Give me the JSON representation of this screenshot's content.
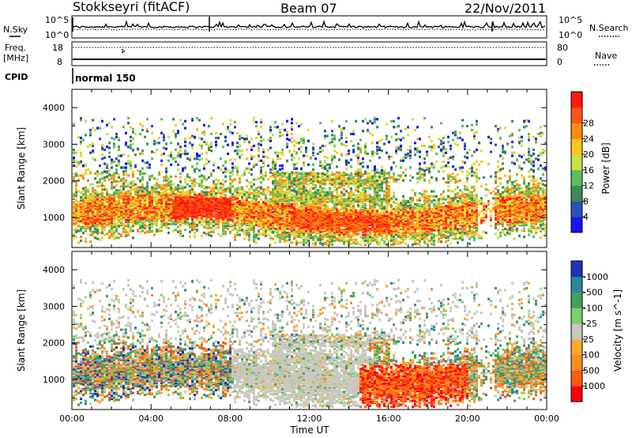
{
  "header": {
    "station": "Stokkseyri (fitACF)",
    "beam": "Beam 07",
    "date": "22/Nov/2011"
  },
  "noise_panel": {
    "left_label": "N.Sky",
    "right_label": "N.Search",
    "tick_top": "10^5",
    "tick_bottom": "10^0"
  },
  "freq_panel": {
    "left_label_1": "Freq.",
    "left_label_2": "[MHz]",
    "right_label": "Nave",
    "left_ticks": [
      "18",
      "8"
    ],
    "right_ticks": [
      "80",
      "0"
    ]
  },
  "cpid": {
    "label": "CPID",
    "value": "normal 150"
  },
  "colors": {
    "power": [
      "#1515ff",
      "#2a52b8",
      "#3c8a56",
      "#5cbf5c",
      "#c8e04a",
      "#ffc21f",
      "#ff8a10",
      "#ff5510",
      "#ff1a10"
    ],
    "velocity": [
      "#ff0000",
      "#ff5a14",
      "#ff8c1e",
      "#ffaa2e",
      "#c8c8c0",
      "#7fd06a",
      "#46a05a",
      "#2a8a9a",
      "#2233bb"
    ]
  },
  "chart_data": [
    {
      "type": "heatmap",
      "quantity": "Power",
      "ylabel": "Slant Range [km]",
      "colorbar_label": "Power [dB]",
      "colorbar_ticks": [
        "4",
        "8",
        "12",
        "16",
        "20",
        "24",
        "28"
      ],
      "y_ticks": [
        "1000",
        "2000",
        "3000",
        "4000"
      ],
      "ylim": [
        180,
        4500
      ],
      "xlim_hours": [
        0,
        24
      ],
      "x_ticks": [
        "00:00",
        "04:00",
        "08:00",
        "12:00",
        "16:00",
        "20:00",
        "00:00"
      ],
      "grid": false
    },
    {
      "type": "heatmap",
      "quantity": "Velocity",
      "ylabel": "Slant Range [km]",
      "colorbar_label": "Velocity [m s^-1]",
      "colorbar_ticks": [
        "1000",
        "500",
        "100",
        "25",
        "-25",
        "-100",
        "-500",
        "-1000"
      ],
      "y_ticks": [
        "1000",
        "2000",
        "3000",
        "4000"
      ],
      "ylim": [
        180,
        4500
      ],
      "xlim_hours": [
        0,
        24
      ],
      "x_ticks": [
        "00:00",
        "04:00",
        "08:00",
        "12:00",
        "16:00",
        "20:00",
        "00:00"
      ],
      "xlabel": "Time UT",
      "grid": false
    }
  ]
}
